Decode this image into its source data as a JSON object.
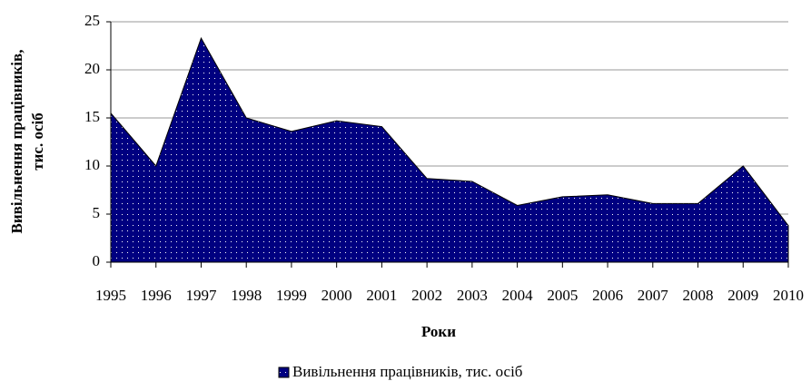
{
  "chart_data": {
    "type": "area",
    "y_label": [
      "Вивільнення працівників,",
      "тис. осіб"
    ],
    "x_label": "Роки",
    "categories": [
      "1995",
      "1996",
      "1997",
      "1998",
      "1999",
      "2000",
      "2001",
      "2002",
      "2003",
      "2004",
      "2005",
      "2006",
      "2007",
      "2008",
      "2009",
      "2010"
    ],
    "series": [
      {
        "name": "Вивільнення працівників, тис. осіб",
        "color": "#000080",
        "values": [
          15.5,
          10.0,
          23.3,
          15.0,
          13.6,
          14.7,
          14.1,
          8.7,
          8.4,
          5.9,
          6.8,
          7.0,
          6.1,
          6.1,
          10.0,
          3.8
        ]
      }
    ],
    "ylim": [
      0,
      25
    ],
    "yticks": [
      0,
      5,
      10,
      15,
      20,
      25
    ],
    "grid": true,
    "legend": "bottom"
  }
}
